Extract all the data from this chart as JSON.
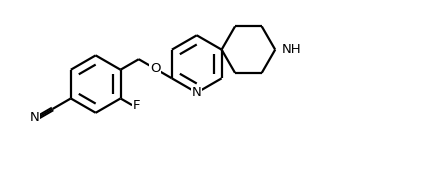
{
  "bg_color": "#ffffff",
  "line_color": "#000000",
  "line_width": 1.6,
  "figsize": [
    4.42,
    1.72
  ],
  "dpi": 100,
  "xlim": [
    -0.1,
    4.52
  ],
  "ylim": [
    0.0,
    1.72
  ]
}
